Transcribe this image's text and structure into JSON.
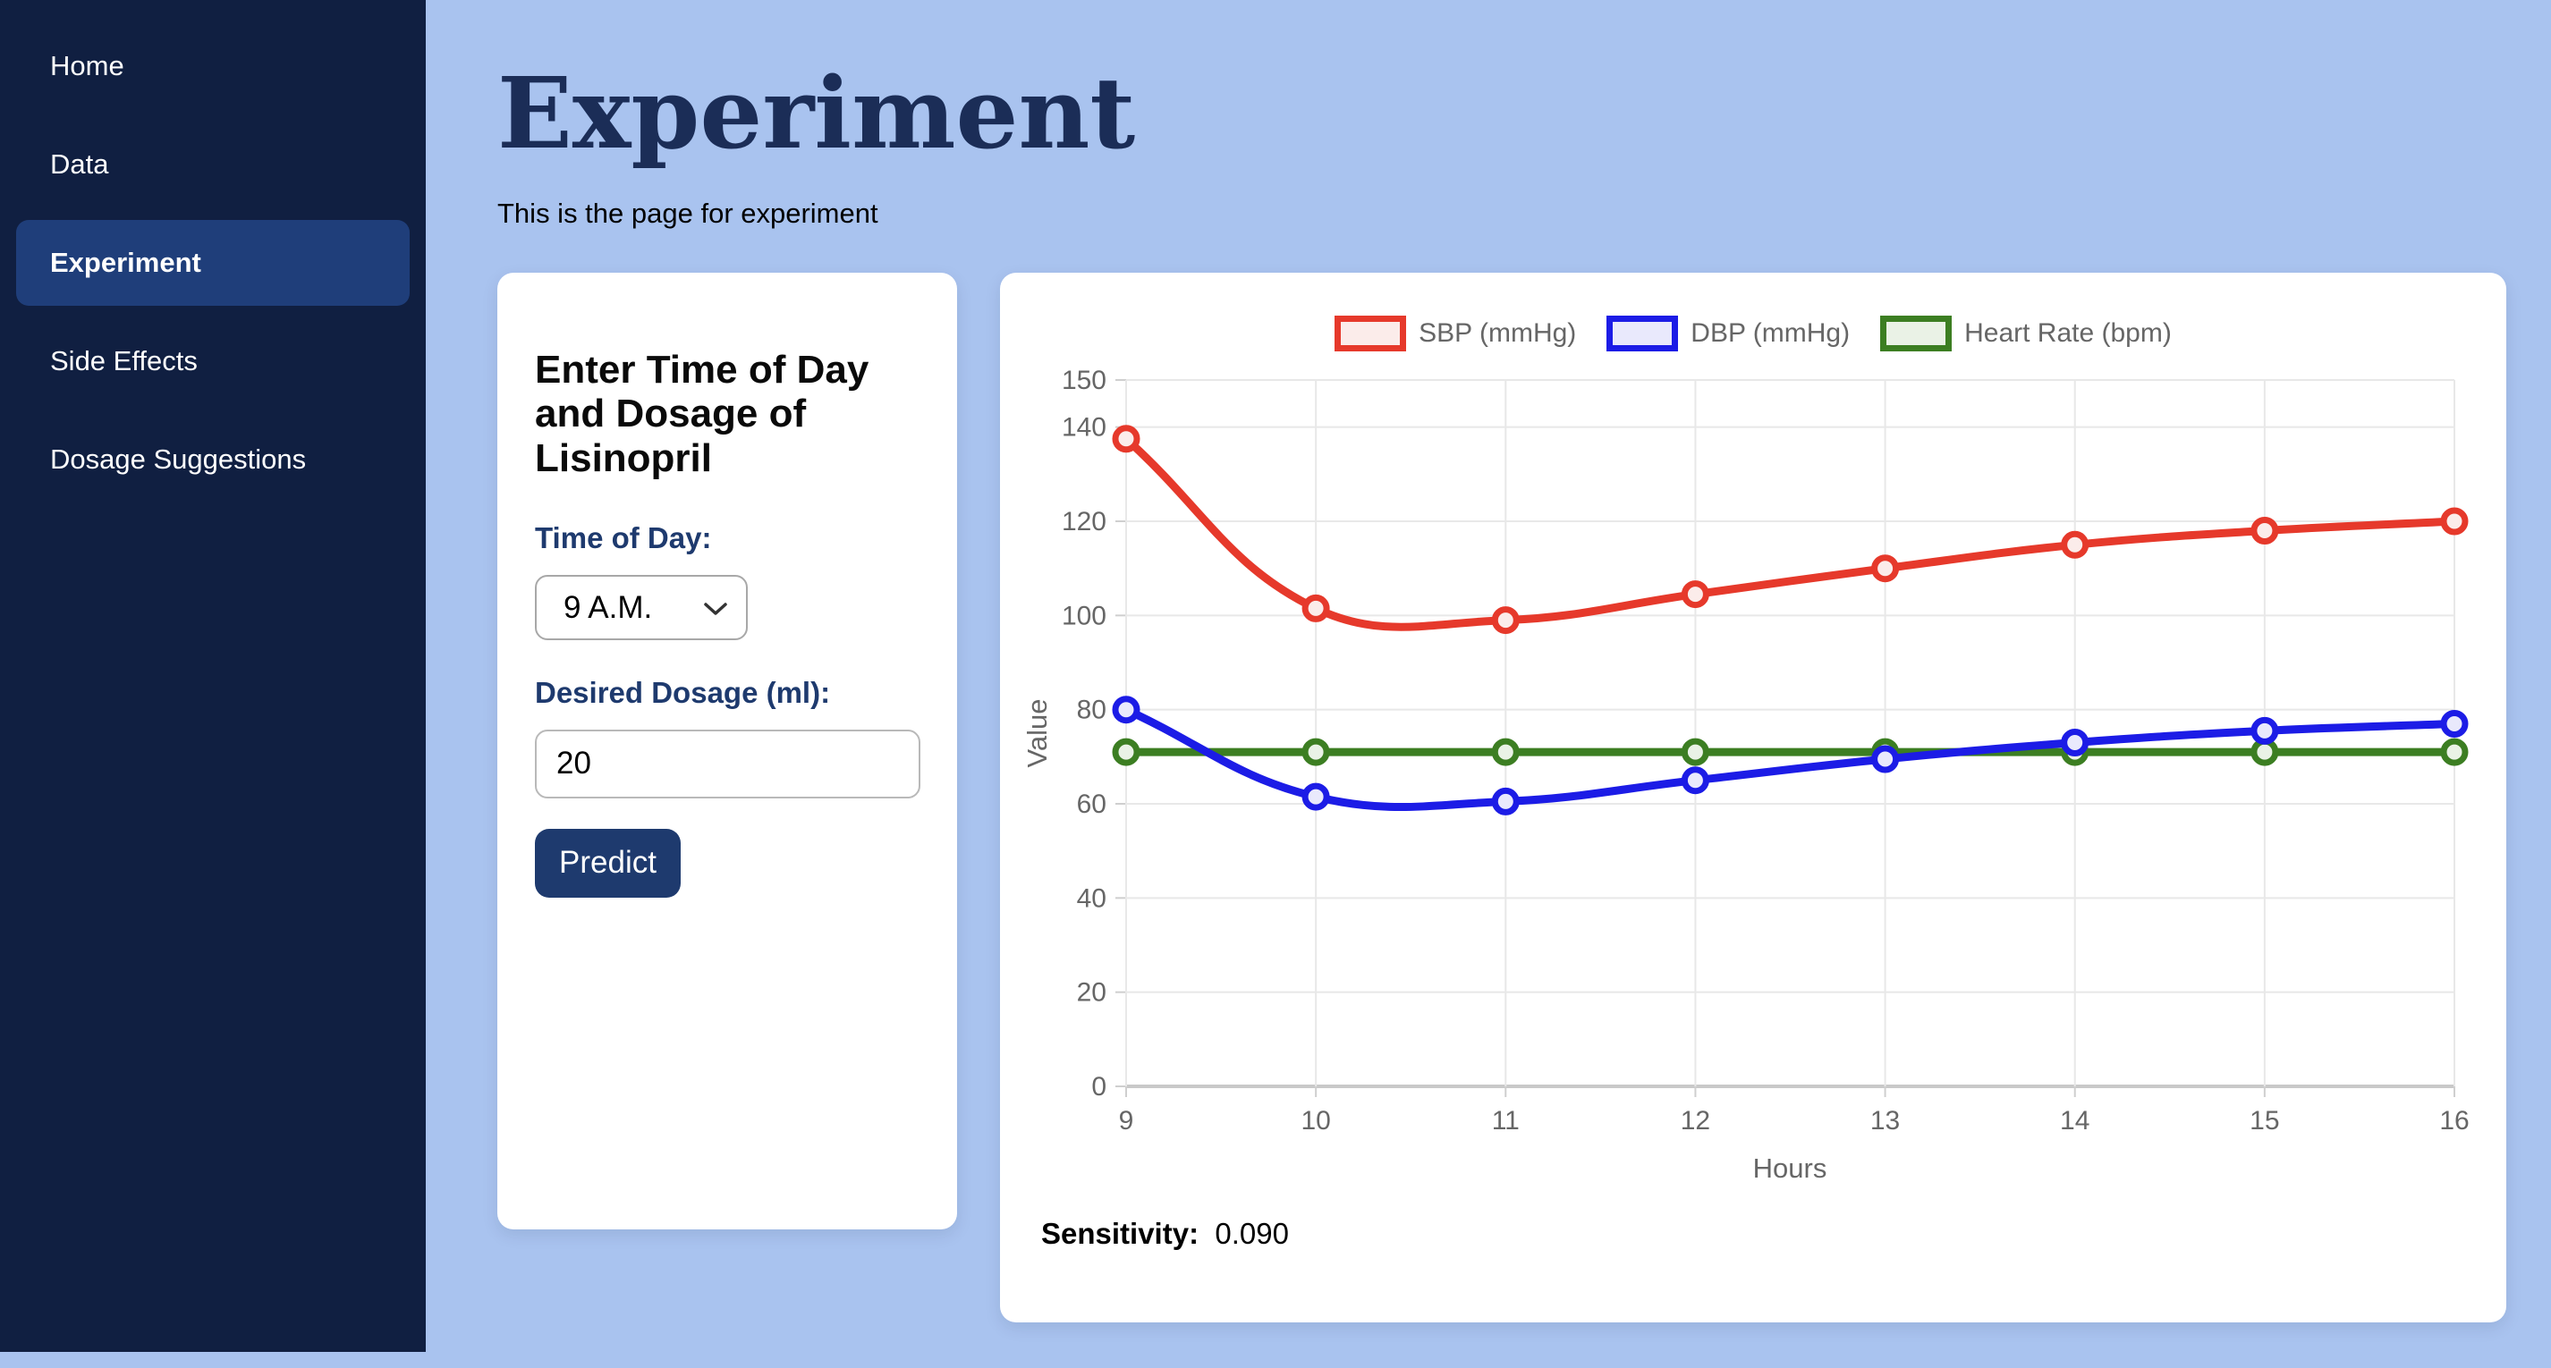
{
  "sidebar": {
    "items": [
      {
        "label": "Home",
        "active": false
      },
      {
        "label": "Data",
        "active": false
      },
      {
        "label": "Experiment",
        "active": true
      },
      {
        "label": "Side Effects",
        "active": false
      },
      {
        "label": "Dosage Suggestions",
        "active": false
      }
    ]
  },
  "page": {
    "title": "Experiment",
    "subtitle": "This is the page for experiment"
  },
  "form": {
    "heading": "Enter Time of Day and Dosage of Lisinopril",
    "time_label": "Time of Day:",
    "time_value": "9 A.M.",
    "dosage_label": "Desired Dosage (ml):",
    "dosage_value": "20",
    "predict_label": "Predict"
  },
  "result": {
    "sensitivity_label": "Sensitivity:",
    "sensitivity_value": "0.090"
  },
  "theme": {
    "page_bg": "#a9c3ef",
    "sidebar_bg": "#101f41",
    "active_pill": "#1f3e7a",
    "navy_accent": "#1e3a6e",
    "title_color": "#1b2d57",
    "axis_text": "#666666",
    "gridline": "#e8e8e8"
  },
  "chart_data": {
    "type": "line",
    "x": [
      9,
      10,
      11,
      12,
      13,
      14,
      15,
      16
    ],
    "xlabel": "Hours",
    "ylabel": "Value",
    "ylim": [
      0,
      150
    ],
    "yticks": [
      0,
      20,
      40,
      60,
      80,
      100,
      120,
      140,
      150
    ],
    "grid": true,
    "legend_position": "top",
    "line_tension": 0.4,
    "series": [
      {
        "name": "SBP (mmHg)",
        "color": "#e6392b",
        "fill": "#fbecea",
        "values": [
          137.5,
          101.5,
          99,
          104.5,
          110,
          115,
          118,
          120
        ]
      },
      {
        "name": "DBP (mmHg)",
        "color": "#1c1ce6",
        "fill": "#e9e9fc",
        "values": [
          80,
          61.5,
          60.5,
          65,
          69.5,
          73,
          75.5,
          77
        ]
      },
      {
        "name": "Heart Rate (bpm)",
        "color": "#3c7e22",
        "fill": "#eaf2e6",
        "values": [
          71,
          71,
          71,
          71,
          71,
          71,
          71,
          71
        ]
      }
    ]
  }
}
